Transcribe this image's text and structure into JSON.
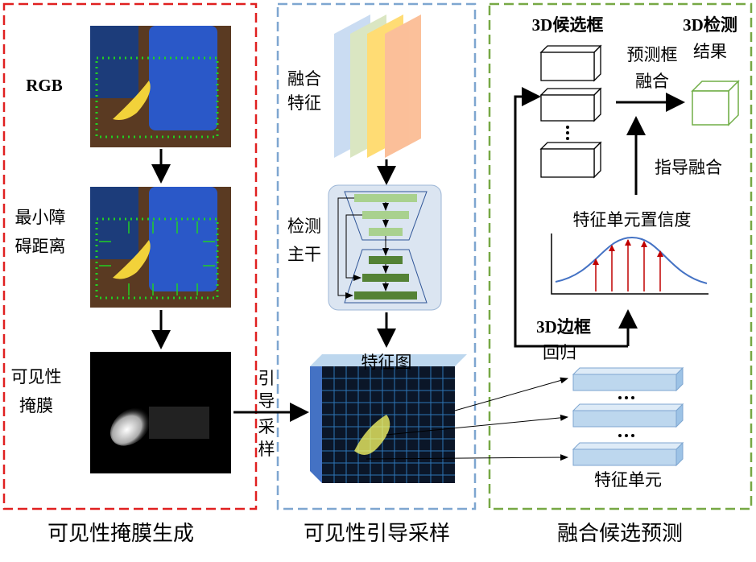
{
  "panel1": {
    "caption": "可见性掩膜生成",
    "rgb_label": "RGB",
    "distance_label": [
      "最小障",
      "碍距离"
    ],
    "mask_label": [
      "可见性",
      "掩膜"
    ]
  },
  "guide_arrow_label": [
    "引",
    "导",
    "采",
    "样"
  ],
  "panel2": {
    "caption": "可见性引导采样",
    "fused_feature_label": [
      "融合",
      "特征"
    ],
    "backbone_label": [
      "检测",
      "主干"
    ],
    "feature_map_label": "特征图"
  },
  "panel3": {
    "caption": "融合候选预测",
    "candidates_label": "3D候选框",
    "result_label": [
      "3D检测",
      "结果"
    ],
    "box_fusion_label": [
      "预测框",
      "融合"
    ],
    "guide_fusion_label": "指导融合",
    "confidence_label": "特征单元置信度",
    "regression_label": [
      "3D边框",
      "回归"
    ],
    "feature_cell_label": "特征单元"
  }
}
